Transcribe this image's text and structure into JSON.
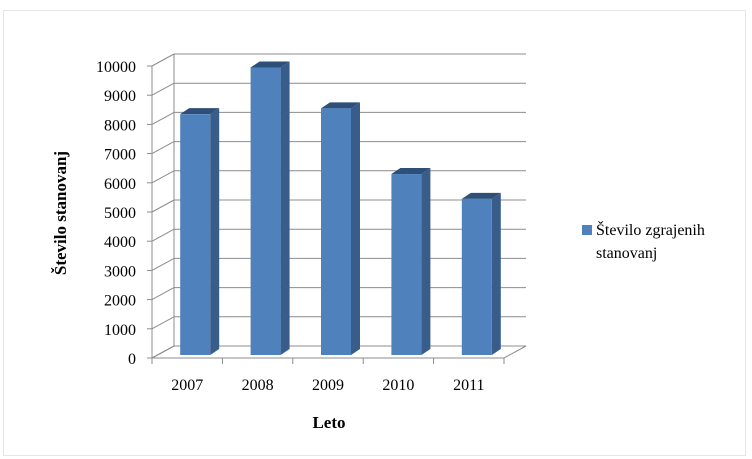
{
  "chart_data": {
    "type": "bar",
    "style": "3d-column",
    "categories": [
      "2007",
      "2008",
      "2009",
      "2010",
      "2011"
    ],
    "series": [
      {
        "name": "Število zgrajenih stanovanj",
        "values": [
          8350,
          9950,
          8550,
          6300,
          5450
        ],
        "color": "#4F81BD"
      }
    ],
    "xlabel": "Leto",
    "ylabel": "Število stanovanj",
    "ylim": [
      0,
      10000
    ],
    "yticks": [
      0,
      1000,
      2000,
      3000,
      4000,
      5000,
      6000,
      7000,
      8000,
      9000,
      10000
    ],
    "grid": true,
    "legend_position": "right",
    "legend_lines": [
      "Število zgrajenih",
      "stanovanj"
    ]
  }
}
